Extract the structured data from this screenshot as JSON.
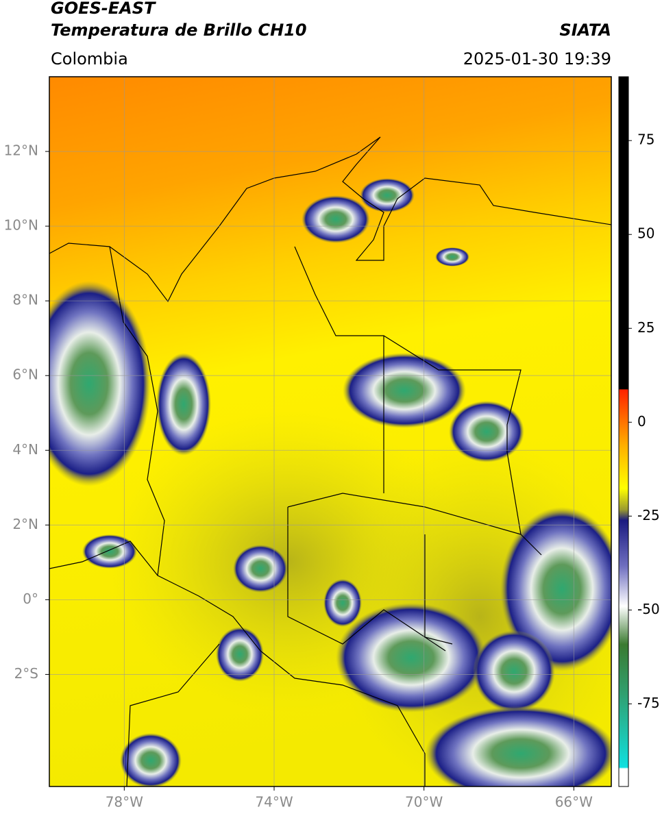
{
  "header": {
    "title": "GOES-EAST",
    "subtitle": "Temperatura de Brillo CH10",
    "source": "SIATA",
    "region": "Colombia",
    "datetime": "2025-01-30 19:39"
  },
  "map": {
    "type": "map",
    "xlim": [
      -80,
      -65
    ],
    "ylim": [
      -5,
      14
    ],
    "xticks": [
      {
        "value": -78,
        "label": "78°W"
      },
      {
        "value": -74,
        "label": "74°W"
      },
      {
        "value": -70,
        "label": "70°W"
      },
      {
        "value": -66,
        "label": "66°W"
      }
    ],
    "yticks": [
      {
        "value": -2,
        "label": "2°S"
      },
      {
        "value": 0,
        "label": "0°"
      },
      {
        "value": 2,
        "label": "2°N"
      },
      {
        "value": 4,
        "label": "4°N"
      },
      {
        "value": 6,
        "label": "6°N"
      },
      {
        "value": 8,
        "label": "8°N"
      },
      {
        "value": 10,
        "label": "10°N"
      },
      {
        "value": 12,
        "label": "12°N"
      }
    ],
    "grid": true
  },
  "colorbar": {
    "lim": [
      -97,
      92
    ],
    "ticks": [
      -75,
      -50,
      -25,
      0,
      25,
      50,
      75
    ]
  }
}
